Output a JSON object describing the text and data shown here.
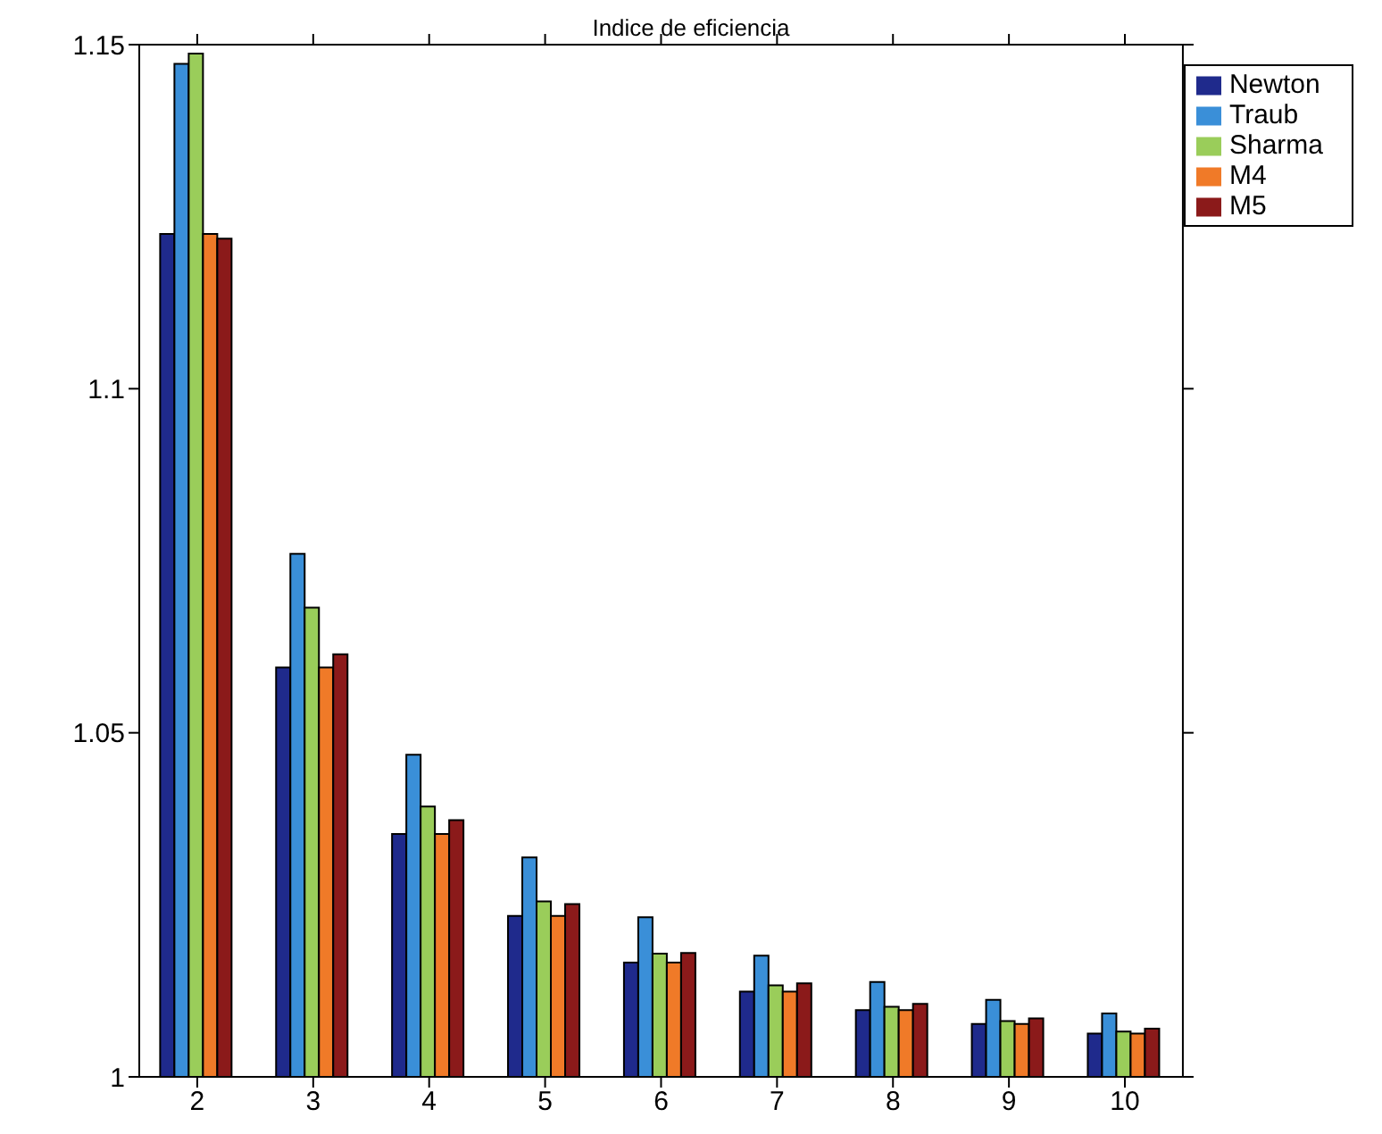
{
  "chart_data": {
    "type": "bar",
    "title": "Indice de eficiencia",
    "categories": [
      "2",
      "3",
      "4",
      "5",
      "6",
      "7",
      "8",
      "9",
      "10"
    ],
    "series": [
      {
        "name": "Newton",
        "color": "#1f2a8c",
        "values": [
          1.1225,
          1.0595,
          1.0353,
          1.0234,
          1.0166,
          1.0124,
          1.0097,
          1.0077,
          1.0063
        ]
      },
      {
        "name": "Traub",
        "color": "#3a8fd8",
        "values": [
          1.1472,
          1.076,
          1.0468,
          1.0319,
          1.0232,
          1.0176,
          1.0138,
          1.0112,
          1.0092
        ]
      },
      {
        "name": "Sharma",
        "color": "#9acd5a",
        "values": [
          1.1487,
          1.0682,
          1.0393,
          1.0255,
          1.0179,
          1.0133,
          1.0102,
          1.0081,
          1.0066
        ]
      },
      {
        "name": "M4",
        "color": "#f07a28",
        "values": [
          1.1225,
          1.0595,
          1.0353,
          1.0234,
          1.0166,
          1.0124,
          1.0097,
          1.0077,
          1.0063
        ]
      },
      {
        "name": "M5",
        "color": "#8b1a1a",
        "values": [
          1.1218,
          1.0614,
          1.0373,
          1.0251,
          1.018,
          1.0136,
          1.0106,
          1.0085,
          1.007
        ]
      }
    ],
    "ylim": [
      1,
      1.15
    ],
    "yticks": [
      1,
      1.05,
      1.1,
      1.15
    ],
    "legend": "top right",
    "grid": false
  }
}
